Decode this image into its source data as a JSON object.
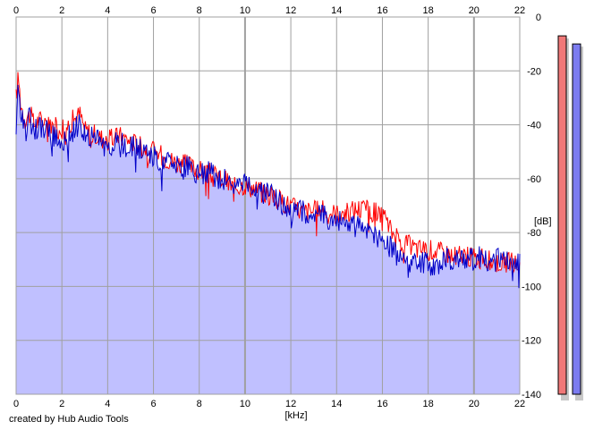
{
  "credit": "created by Hub Audio Tools",
  "chart_data": {
    "type": "line",
    "title": "",
    "xlabel": "[kHz]",
    "ylabel": "[dB]",
    "xlim": [
      0,
      22
    ],
    "ylim": [
      -140,
      0
    ],
    "x_ticks": [
      0,
      2,
      4,
      6,
      8,
      10,
      12,
      14,
      16,
      18,
      20,
      22
    ],
    "y_ticks": [
      0,
      -20,
      -40,
      -60,
      -80,
      -100,
      -120,
      -140
    ],
    "grid": true,
    "colors": {
      "red_channel": "#ff0000",
      "blue_channel": "#0000c8",
      "fill": "#c0c0ff",
      "grid": "#a0a0a0",
      "meter_red": "#f07878",
      "meter_blue": "#7c7cf0"
    },
    "series": [
      {
        "color": "red",
        "x": [
          0,
          0.1,
          0.2,
          0.4,
          0.6,
          0.8,
          1.0,
          1.5,
          2.0,
          2.5,
          2.8,
          3.0,
          3.5,
          4.0,
          4.5,
          5.0,
          5.5,
          6.0,
          6.5,
          7.0,
          7.5,
          8.0,
          8.5,
          9.0,
          9.5,
          10.0,
          10.5,
          11.0,
          11.5,
          12.0,
          12.5,
          13.0,
          13.5,
          14.0,
          14.5,
          15.0,
          15.5,
          16.0,
          16.3,
          16.6,
          17.0,
          17.5,
          18.0,
          18.5,
          19.0,
          19.5,
          20.0,
          20.5,
          21.0,
          21.5,
          22.0
        ],
        "y": [
          -30,
          -22,
          -32,
          -38,
          -36,
          -40,
          -38,
          -40,
          -42,
          -38,
          -36,
          -42,
          -44,
          -46,
          -44,
          -46,
          -48,
          -50,
          -52,
          -54,
          -55,
          -57,
          -58,
          -60,
          -63,
          -62,
          -64,
          -66,
          -68,
          -70,
          -72,
          -72,
          -72,
          -73,
          -72,
          -71,
          -72,
          -74,
          -78,
          -82,
          -84,
          -86,
          -86,
          -87,
          -88,
          -89,
          -89,
          -90,
          -91,
          -91,
          -92
        ]
      },
      {
        "color": "blue",
        "x": [
          0,
          0.1,
          0.2,
          0.4,
          0.6,
          0.8,
          1.0,
          1.5,
          2.0,
          2.5,
          2.8,
          3.0,
          3.5,
          4.0,
          4.5,
          5.0,
          5.5,
          6.0,
          6.5,
          7.0,
          7.5,
          8.0,
          8.5,
          9.0,
          9.5,
          10.0,
          10.5,
          11.0,
          11.5,
          12.0,
          12.5,
          13.0,
          13.5,
          14.0,
          14.5,
          15.0,
          15.5,
          16.0,
          16.3,
          16.6,
          17.0,
          17.5,
          18.0,
          18.5,
          19.0,
          19.5,
          20.0,
          20.5,
          21.0,
          21.5,
          22.0
        ],
        "y": [
          -42,
          -26,
          -34,
          -40,
          -38,
          -42,
          -40,
          -44,
          -46,
          -42,
          -40,
          -44,
          -46,
          -48,
          -47,
          -48,
          -50,
          -52,
          -54,
          -56,
          -56,
          -58,
          -58,
          -60,
          -62,
          -62,
          -64,
          -66,
          -68,
          -72,
          -72,
          -73,
          -74,
          -76,
          -77,
          -78,
          -80,
          -82,
          -85,
          -88,
          -90,
          -91,
          -92,
          -91,
          -90,
          -89,
          -89,
          -90,
          -90,
          -91,
          -92
        ]
      }
    ],
    "meters": [
      {
        "color": "red",
        "value_db": -7
      },
      {
        "color": "blue",
        "value_db": -10
      }
    ]
  }
}
